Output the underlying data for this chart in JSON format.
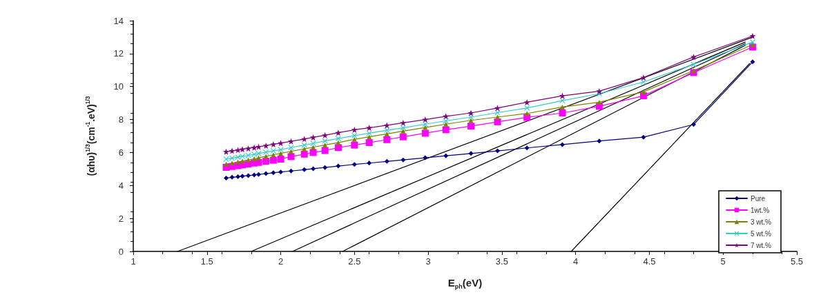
{
  "chart_data": {
    "type": "line",
    "xlabel": "E$_{ph}$(eV)",
    "ylabel": "(αhυ)$^{1/3}$(cm$^{-1}$.eV)$^{1/3}$",
    "x": [
      1.63,
      1.67,
      1.71,
      1.74,
      1.78,
      1.82,
      1.85,
      1.9,
      1.95,
      2.0,
      2.07,
      2.16,
      2.22,
      2.3,
      2.39,
      2.5,
      2.6,
      2.72,
      2.83,
      2.98,
      3.12,
      3.29,
      3.47,
      3.67,
      3.91,
      4.16,
      4.46,
      4.8,
      5.2
    ],
    "series": [
      {
        "name": "Pure",
        "color": "#000080",
        "marker": "diamond",
        "values": [
          4.45,
          4.5,
          4.53,
          4.57,
          4.6,
          4.64,
          4.67,
          4.72,
          4.77,
          4.82,
          4.88,
          4.96,
          5.02,
          5.09,
          5.18,
          5.28,
          5.36,
          5.46,
          5.55,
          5.68,
          5.8,
          5.94,
          6.1,
          6.28,
          6.48,
          6.7,
          6.93,
          7.7,
          11.5
        ]
      },
      {
        "name": "1wt.%",
        "color": "#ff00ff",
        "marker": "square",
        "values": [
          5.1,
          5.15,
          5.2,
          5.25,
          5.3,
          5.36,
          5.4,
          5.47,
          5.53,
          5.6,
          5.75,
          5.9,
          6.0,
          6.12,
          6.3,
          6.45,
          6.6,
          6.78,
          6.95,
          7.17,
          7.38,
          7.6,
          7.86,
          8.13,
          8.4,
          8.8,
          9.44,
          10.85,
          12.4
        ]
      },
      {
        "name": "3 wt.%",
        "color": "#808000",
        "marker": "triangle",
        "values": [
          5.3,
          5.36,
          5.43,
          5.48,
          5.55,
          5.62,
          5.68,
          5.77,
          5.86,
          5.95,
          6.07,
          6.22,
          6.32,
          6.46,
          6.6,
          6.8,
          6.95,
          7.13,
          7.3,
          7.52,
          7.72,
          7.95,
          8.15,
          8.37,
          8.76,
          9.05,
          9.68,
          10.97,
          12.55
        ]
      },
      {
        "name": "5 wt.%",
        "color": "#33cccc",
        "marker": "cross",
        "values": [
          5.6,
          5.66,
          5.72,
          5.77,
          5.83,
          5.89,
          5.94,
          6.02,
          6.1,
          6.17,
          6.3,
          6.45,
          6.55,
          6.7,
          6.85,
          7.02,
          7.17,
          7.35,
          7.5,
          7.72,
          7.92,
          8.15,
          8.42,
          8.7,
          9.15,
          9.57,
          10.28,
          11.35,
          12.7
        ]
      },
      {
        "name": "7 wt.%",
        "color": "#800080",
        "marker": "star",
        "values": [
          6.05,
          6.1,
          6.15,
          6.2,
          6.25,
          6.3,
          6.35,
          6.42,
          6.5,
          6.57,
          6.68,
          6.82,
          6.92,
          7.05,
          7.2,
          7.38,
          7.5,
          7.65,
          7.8,
          8.0,
          8.2,
          8.4,
          8.7,
          9.05,
          9.44,
          9.72,
          10.55,
          11.8,
          13.07
        ]
      },
      {
        "color": "#000000",
        "marker": "none",
        "x": [
          1.3,
          5.2
        ],
        "values": [
          0,
          13.0
        ]
      },
      {
        "color": "#000000",
        "marker": "none",
        "x": [
          1.8,
          5.15
        ],
        "values": [
          0,
          12.7
        ]
      },
      {
        "color": "#000000",
        "marker": "none",
        "x": [
          2.08,
          5.15
        ],
        "values": [
          0,
          12.6
        ]
      },
      {
        "color": "#000000",
        "marker": "none",
        "x": [
          2.42,
          5.15
        ],
        "values": [
          0,
          12.5
        ]
      },
      {
        "color": "#000000",
        "marker": "none",
        "x": [
          3.97,
          5.18
        ],
        "values": [
          0,
          11.4
        ]
      }
    ],
    "xlim": [
      1,
      5.5
    ],
    "xticks": [
      1,
      1.5,
      2,
      2.5,
      3,
      3.5,
      4,
      4.5,
      5,
      5.5
    ],
    "ylim": [
      0,
      14
    ],
    "yticks": [
      0,
      2,
      4,
      6,
      8,
      10,
      12,
      14
    ],
    "grid": false,
    "legend": "bottom right"
  }
}
